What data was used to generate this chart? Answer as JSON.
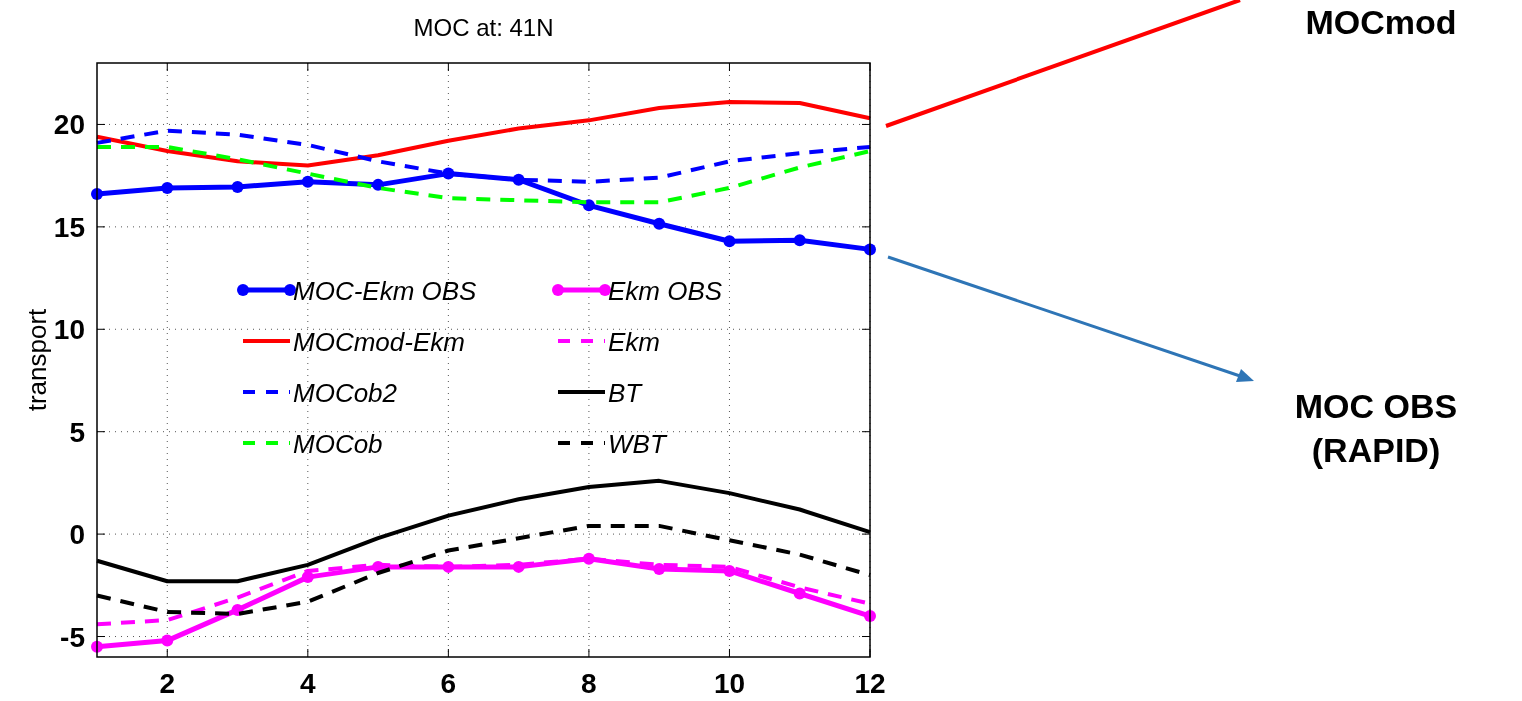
{
  "chart_data": {
    "type": "line",
    "title": "MOC at:  41N",
    "ylabel": "transport",
    "x": [
      1,
      2,
      3,
      4,
      5,
      6,
      7,
      8,
      9,
      10,
      11,
      12
    ],
    "xlim": [
      1,
      12
    ],
    "xticks": [
      2,
      4,
      6,
      8,
      10,
      12
    ],
    "ylim": [
      -6,
      23
    ],
    "yticks": [
      -5,
      0,
      5,
      10,
      15,
      20
    ],
    "grid": true,
    "legend": "left",
    "series": [
      {
        "name": "MOC-Ekm OBS",
        "color": "#0000ff",
        "marker": "circle",
        "line_style": "solid",
        "values": [
          16.6,
          16.9,
          16.95,
          17.2,
          17.05,
          17.6,
          17.3,
          16.05,
          15.15,
          14.3,
          14.35,
          13.9
        ]
      },
      {
        "name": "MOCmod-Ekm",
        "color": "#ff0000",
        "line_style": "solid",
        "values": [
          19.4,
          18.7,
          18.2,
          18.0,
          18.5,
          19.2,
          19.8,
          20.2,
          20.8,
          21.1,
          21.05,
          20.3
        ]
      },
      {
        "name": "MOCob2",
        "color": "#0000ff",
        "line_style": "dashed",
        "values": [
          19.1,
          19.7,
          19.5,
          19.0,
          18.2,
          17.6,
          17.3,
          17.2,
          17.4,
          18.2,
          18.6,
          18.9
        ]
      },
      {
        "name": "MOCob",
        "color": "#00ff00",
        "line_style": "dashed",
        "values": [
          18.9,
          18.9,
          18.3,
          17.6,
          16.9,
          16.4,
          16.3,
          16.2,
          16.2,
          16.9,
          17.9,
          18.7
        ]
      },
      {
        "name": "Ekm OBS",
        "color": "#ff00ff",
        "marker": "circle",
        "line_style": "solid",
        "values": [
          -5.5,
          -5.2,
          -3.7,
          -2.1,
          -1.6,
          -1.6,
          -1.6,
          -1.2,
          -1.7,
          -1.8,
          -2.9,
          -4.0
        ]
      },
      {
        "name": "Ekm",
        "color": "#ff00ff",
        "line_style": "dashed",
        "values": [
          -4.4,
          -4.2,
          -3.1,
          -1.8,
          -1.5,
          -1.6,
          -1.5,
          -1.2,
          -1.5,
          -1.6,
          -2.6,
          -3.4
        ]
      },
      {
        "name": "BT",
        "color": "#000000",
        "line_style": "solid",
        "values": [
          -1.3,
          -2.3,
          -2.3,
          -1.5,
          -0.2,
          0.9,
          1.7,
          2.3,
          2.6,
          2.0,
          1.2,
          0.1
        ]
      },
      {
        "name": "WBT",
        "color": "#000000",
        "line_style": "dashed",
        "values": [
          -3.0,
          -3.8,
          -3.9,
          -3.3,
          -1.9,
          -0.8,
          -0.2,
          0.4,
          0.4,
          -0.3,
          -1.0,
          -2.0
        ]
      }
    ],
    "annotations": [
      "MOCmod",
      "MOC OBS (RAPID)"
    ]
  }
}
